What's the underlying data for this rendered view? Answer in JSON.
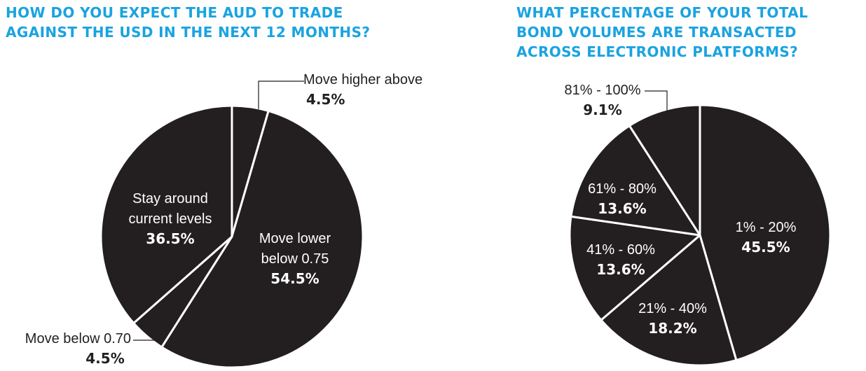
{
  "charts": {
    "left_title": "HOW DO YOU EXPECT THE AUD TO TRADE\nAGAINST THE USD IN THE NEXT 12 MONTHS?",
    "right_title": "WHAT PERCENTAGE OF YOUR TOTAL\nBOND VOLUMES ARE TRANSACTED\nACROSS ELECTRONIC PLATFORMS?"
  },
  "colors": {
    "title": "#1aa3e0",
    "slice_fill": "#231f20",
    "slice_border": "#ffffff",
    "label_inside": "#ffffff",
    "label_outside": "#231f20"
  },
  "chart_data": [
    {
      "type": "pie",
      "title": "HOW DO YOU EXPECT THE AUD TO TRADE AGAINST THE USD IN THE NEXT 12 MONTHS?",
      "slices": [
        {
          "label": "Move higher above",
          "value": 4.5,
          "value_label": "4.5%"
        },
        {
          "label": "Move lower below 0.75",
          "value": 54.5,
          "value_label": "54.5%"
        },
        {
          "label": "Move below 0.70",
          "value": 4.5,
          "value_label": "4.5%"
        },
        {
          "label": "Stay around current levels",
          "value": 36.5,
          "value_label": "36.5%"
        }
      ]
    },
    {
      "type": "pie",
      "title": "WHAT PERCENTAGE OF YOUR TOTAL BOND VOLUMES ARE TRANSACTED ACROSS ELECTRONIC PLATFORMS?",
      "slices": [
        {
          "label": "1% - 20%",
          "value": 45.5,
          "value_label": "45.5%"
        },
        {
          "label": "21% - 40%",
          "value": 18.2,
          "value_label": "18.2%"
        },
        {
          "label": "41% - 60%",
          "value": 13.6,
          "value_label": "13.6%"
        },
        {
          "label": "61% - 80%",
          "value": 13.6,
          "value_label": "13.6%"
        },
        {
          "label": "81% - 100%",
          "value": 9.1,
          "value_label": "9.1%"
        }
      ]
    }
  ]
}
